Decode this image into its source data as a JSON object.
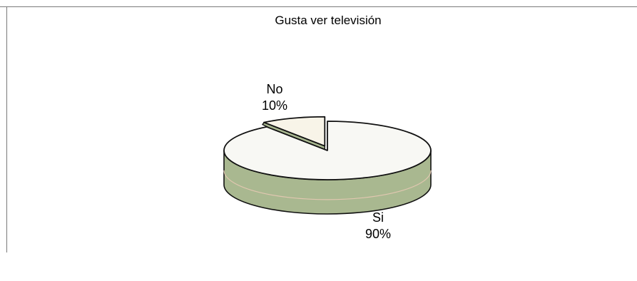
{
  "chart_data": {
    "type": "pie",
    "title": "Gusta ver televisión",
    "style": "3d-exploded",
    "slices": [
      {
        "label": "No",
        "value": 10,
        "display": "10%",
        "color": "#f8f4e8",
        "exploded": true
      },
      {
        "label": "Si",
        "value": 90,
        "display": "90%",
        "color": "#f8f8f4",
        "exploded": false
      }
    ],
    "side_color": "#a9b890",
    "outline_color": "#111111"
  }
}
